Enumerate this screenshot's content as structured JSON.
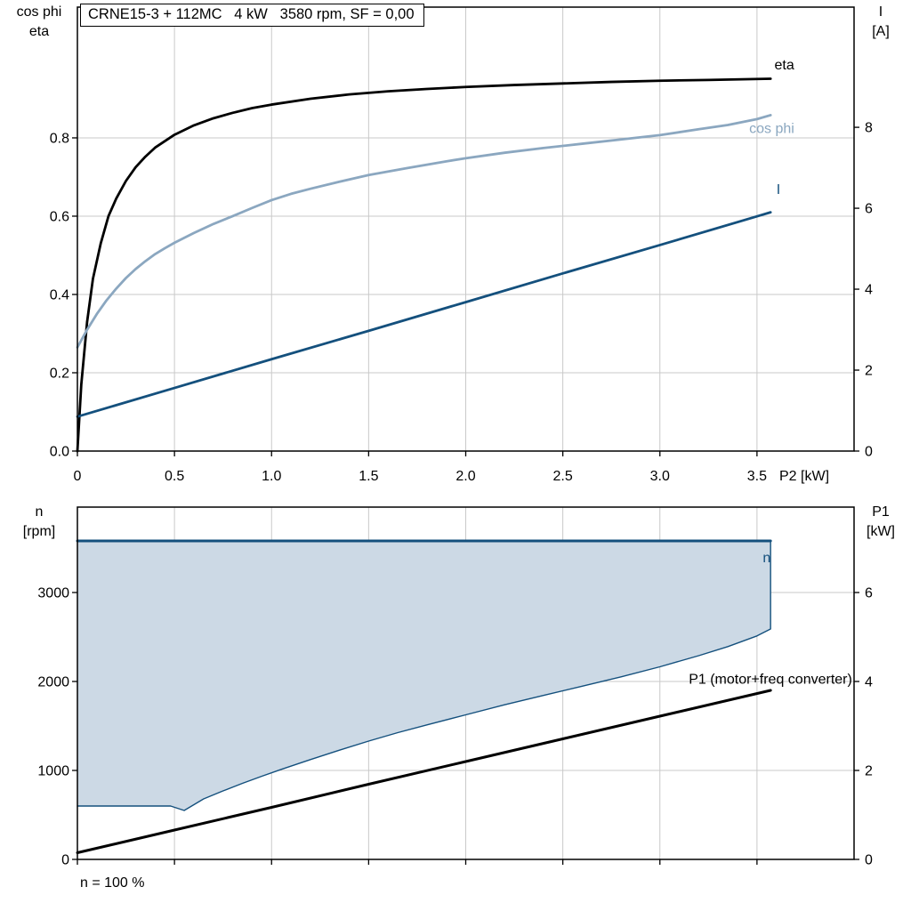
{
  "title_box": "CRNE15-3 + 112MC   4 kW   3580 rpm, SF = 0,00",
  "footer_note": "n = 100 %",
  "colors": {
    "dark_blue": "#14507d",
    "light_blue": "#8ba7c0",
    "area_fill": "#ccd9e5",
    "grid": "#c9c9c9",
    "frame": "#000000"
  },
  "chart_data": [
    {
      "id": "motor-chart",
      "type": "line",
      "title": "CRNE15-3 + 112MC   4 kW   3580 rpm, SF = 0,00",
      "x_axis": {
        "title": "P2 [kW]",
        "min": 0,
        "max": 4.0,
        "ticks": [
          0,
          0.5,
          1.0,
          1.5,
          2.0,
          2.5,
          3.0,
          3.5
        ],
        "tick_labels": [
          "0",
          "0.5",
          "1.0",
          "1.5",
          "2.0",
          "2.5",
          "3.0",
          "3.5"
        ]
      },
      "left_axis": {
        "title_lines": [
          "cos phi",
          "eta"
        ],
        "min": 0,
        "max": 1.134,
        "ticks": [
          0,
          0.2,
          0.4,
          0.6,
          0.8
        ],
        "tick_labels": [
          "0.0",
          "0.2",
          "0.4",
          "0.6",
          "0.8"
        ],
        "grid": true
      },
      "right_axis": {
        "title_lines": [
          "I",
          "[A]"
        ],
        "min": 0,
        "max": 10.97,
        "ticks": [
          0,
          2,
          4,
          6,
          8
        ],
        "tick_labels": [
          "0",
          "2",
          "4",
          "6",
          "8"
        ],
        "grid": false
      },
      "series": [
        {
          "name": "eta",
          "label": "eta",
          "axis": "left",
          "color": "#000000",
          "width": 2.8,
          "label_pos": {
            "x": 3.59,
            "y": 0.975,
            "anchor": "start"
          },
          "points": [
            [
              0,
              0
            ],
            [
              0.02,
              0.17
            ],
            [
              0.05,
              0.33
            ],
            [
              0.08,
              0.44
            ],
            [
              0.12,
              0.53
            ],
            [
              0.16,
              0.6
            ],
            [
              0.2,
              0.645
            ],
            [
              0.25,
              0.69
            ],
            [
              0.3,
              0.725
            ],
            [
              0.35,
              0.752
            ],
            [
              0.4,
              0.775
            ],
            [
              0.5,
              0.808
            ],
            [
              0.6,
              0.832
            ],
            [
              0.7,
              0.85
            ],
            [
              0.8,
              0.864
            ],
            [
              0.9,
              0.876
            ],
            [
              1.0,
              0.885
            ],
            [
              1.2,
              0.9
            ],
            [
              1.4,
              0.911
            ],
            [
              1.6,
              0.919
            ],
            [
              1.8,
              0.925
            ],
            [
              2.0,
              0.93
            ],
            [
              2.25,
              0.935
            ],
            [
              2.5,
              0.939
            ],
            [
              2.75,
              0.943
            ],
            [
              3.0,
              0.946
            ],
            [
              3.25,
              0.948
            ],
            [
              3.57,
              0.951
            ]
          ]
        },
        {
          "name": "cos-phi",
          "label": "cos phi",
          "axis": "left",
          "color": "#8ba7c0",
          "width": 2.8,
          "label_pos": {
            "x": 3.46,
            "y": 0.812,
            "anchor": "start"
          },
          "points": [
            [
              0,
              0.265
            ],
            [
              0.05,
              0.31
            ],
            [
              0.1,
              0.35
            ],
            [
              0.15,
              0.385
            ],
            [
              0.2,
              0.415
            ],
            [
              0.25,
              0.442
            ],
            [
              0.3,
              0.465
            ],
            [
              0.35,
              0.485
            ],
            [
              0.4,
              0.503
            ],
            [
              0.45,
              0.518
            ],
            [
              0.5,
              0.532
            ],
            [
              0.6,
              0.557
            ],
            [
              0.7,
              0.58
            ],
            [
              0.8,
              0.6
            ],
            [
              0.9,
              0.621
            ],
            [
              1.0,
              0.641
            ],
            [
              1.1,
              0.657
            ],
            [
              1.2,
              0.67
            ],
            [
              1.35,
              0.688
            ],
            [
              1.5,
              0.705
            ],
            [
              1.7,
              0.723
            ],
            [
              1.9,
              0.74
            ],
            [
              2.0,
              0.748
            ],
            [
              2.2,
              0.762
            ],
            [
              2.4,
              0.774
            ],
            [
              2.6,
              0.785
            ],
            [
              2.8,
              0.796
            ],
            [
              3.0,
              0.807
            ],
            [
              3.2,
              0.822
            ],
            [
              3.35,
              0.833
            ],
            [
              3.5,
              0.848
            ],
            [
              3.57,
              0.858
            ]
          ]
        },
        {
          "name": "current",
          "label": "I",
          "axis": "right",
          "color": "#14507d",
          "width": 2.8,
          "label_pos": {
            "x": 3.6,
            "y": 6.35,
            "anchor": "start"
          },
          "points": [
            [
              0,
              0.85
            ],
            [
              0.5,
              1.56
            ],
            [
              1.0,
              2.27
            ],
            [
              1.5,
              2.97
            ],
            [
              2.0,
              3.68
            ],
            [
              2.5,
              4.39
            ],
            [
              3.0,
              5.09
            ],
            [
              3.5,
              5.8
            ],
            [
              3.57,
              5.9
            ]
          ]
        }
      ]
    },
    {
      "id": "speed-chart",
      "type": "line",
      "title": "",
      "footnote": "n = 100 %",
      "x_axis": {
        "title": "",
        "min": 0,
        "max": 4.0,
        "ticks": [
          0,
          0.5,
          1.0,
          1.5,
          2.0,
          2.5,
          3.0,
          3.5
        ],
        "tick_labels": []
      },
      "left_axis": {
        "title_lines": [
          "n",
          "[rpm]"
        ],
        "min": 0,
        "max": 3960,
        "ticks": [
          0,
          1000,
          2000,
          3000
        ],
        "tick_labels": [
          "0",
          "1000",
          "2000",
          "3000"
        ],
        "grid": true
      },
      "right_axis": {
        "title_lines": [
          "P1",
          "[kW]"
        ],
        "min": 0,
        "max": 7.92,
        "ticks": [
          0,
          2,
          4,
          6
        ],
        "tick_labels": [
          "0",
          "2",
          "4",
          "6"
        ],
        "grid": false
      },
      "series": [
        {
          "name": "speed-range",
          "label": "",
          "axis": "left",
          "color": "#14507d",
          "width": 1.4,
          "fill": "#ccd9e5",
          "fill_top": 3580,
          "points": [
            [
              0,
              600
            ],
            [
              0.48,
              600
            ],
            [
              0.55,
              550
            ],
            [
              0.65,
              680
            ],
            [
              0.75,
              770
            ],
            [
              0.85,
              855
            ],
            [
              0.95,
              935
            ],
            [
              1.05,
              1012
            ],
            [
              1.2,
              1122
            ],
            [
              1.35,
              1228
            ],
            [
              1.5,
              1330
            ],
            [
              1.65,
              1425
            ],
            [
              1.8,
              1512
            ],
            [
              2.0,
              1625
            ],
            [
              2.2,
              1738
            ],
            [
              2.4,
              1843
            ],
            [
              2.6,
              1947
            ],
            [
              2.8,
              2052
            ],
            [
              3.0,
              2165
            ],
            [
              3.2,
              2290
            ],
            [
              3.35,
              2392
            ],
            [
              3.5,
              2512
            ],
            [
              3.57,
              2590
            ],
            [
              3.57,
              3580
            ]
          ]
        },
        {
          "name": "n-line",
          "label": "n",
          "axis": "left",
          "color": "#14507d",
          "width": 3,
          "label_pos": {
            "x": 3.53,
            "y": 3340,
            "anchor": "start"
          },
          "points": [
            [
              0,
              3580
            ],
            [
              3.57,
              3580
            ]
          ]
        },
        {
          "name": "p1-line",
          "label": "P1 (motor+freq converter)",
          "axis": "right",
          "color": "#000000",
          "width": 3,
          "label_pos": {
            "x": 3.99,
            "y": 3.95,
            "anchor": "end"
          },
          "points": [
            [
              0,
              0.15
            ],
            [
              0.5,
              0.66
            ],
            [
              1.0,
              1.17
            ],
            [
              1.5,
              1.69
            ],
            [
              2.0,
              2.2
            ],
            [
              2.5,
              2.71
            ],
            [
              3.0,
              3.22
            ],
            [
              3.57,
              3.8
            ]
          ]
        }
      ]
    }
  ]
}
